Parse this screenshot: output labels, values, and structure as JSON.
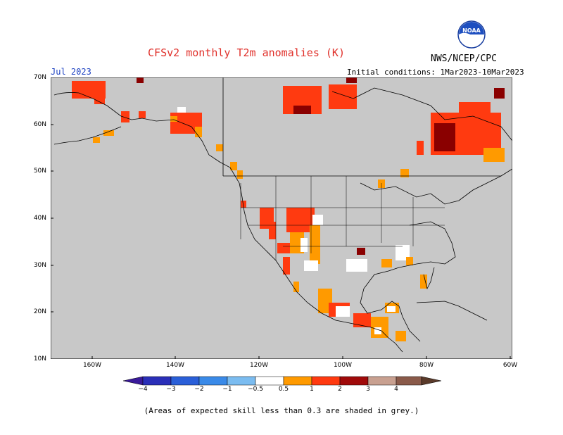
{
  "header": {
    "title": "CFSv2 monthly T2m anomalies (K)",
    "agency": "NWS/NCEP/CPC",
    "month": "Jul 2023",
    "initial_conditions": "Initial conditions: 1Mar2023-10Mar2023",
    "logo_text": "NOAA"
  },
  "map": {
    "lat_labels": [
      "70N",
      "60N",
      "50N",
      "40N",
      "30N",
      "20N",
      "10N"
    ],
    "lon_labels": [
      "160W",
      "140W",
      "120W",
      "100W",
      "80W",
      "60W"
    ],
    "background_color": "#c8c8c8",
    "coastline_color": "#000000"
  },
  "colorbar": {
    "labels": [
      "−4",
      "−3",
      "−2",
      "−1",
      "−0.5",
      "0.5",
      "1",
      "2",
      "3",
      "4"
    ],
    "colors": [
      "#3a1a9a",
      "#2a3fd0",
      "#2f6fe0",
      "#3d9ae8",
      "#7bbcf0",
      "#ffffff",
      "#ff9a00",
      "#ff3a10",
      "#c81414",
      "#8a0000",
      "#c8a090",
      "#7a4a3a"
    ]
  },
  "footer": {
    "note": "(Areas of expected skill less than 0.3 are shaded in grey.)"
  }
}
